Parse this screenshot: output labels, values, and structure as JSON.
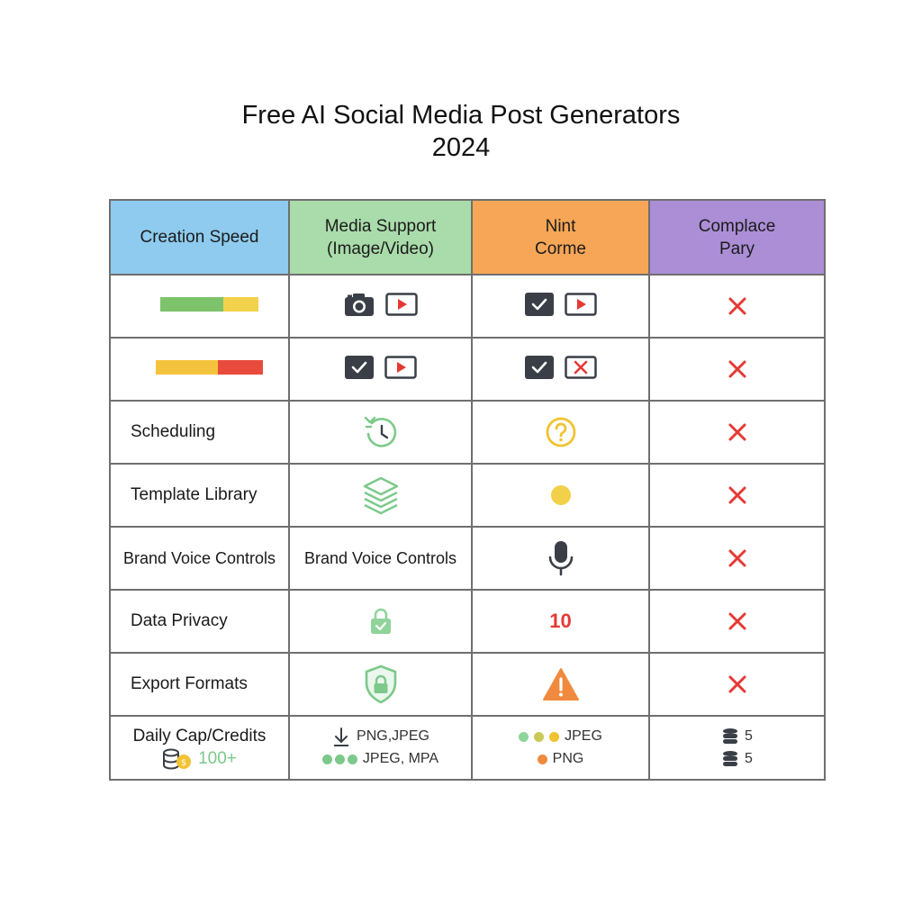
{
  "title": {
    "line1": "Free AI Social Media Post Generators",
    "line2": "2024"
  },
  "headers": [
    "Creation Speed",
    "Media Support\n(Image/Video)",
    "Nint\nCorme",
    "Complace\nPary"
  ],
  "headers_split": [
    [
      "Creation Speed"
    ],
    [
      "Media Support",
      "(Image/Video)"
    ],
    [
      "Nint",
      "Corme"
    ],
    [
      "Complace",
      "Pary"
    ]
  ],
  "colors": {
    "header_blue": "#8ecbee",
    "header_green": "#a9dcaa",
    "header_orange": "#f6a656",
    "header_purple": "#ab8ed6",
    "cross_red": "#e53935",
    "icon_green": "#7cc98a",
    "dark": "#3a3f47"
  },
  "rows": {
    "r1": {
      "speed_bar": [
        {
          "color": "#7dc36b",
          "fraction": 0.64
        },
        {
          "color": "#f2d24b",
          "fraction": 0.36
        }
      ],
      "media_icons": [
        "camera-icon",
        "play-icon"
      ],
      "col3_icons": [
        "checkbox-icon",
        "play-icon"
      ],
      "col4_icon": "cross-icon"
    },
    "r2": {
      "speed_bar": [
        {
          "color": "#f4c33d",
          "fraction": 0.58
        },
        {
          "color": "#e84b3c",
          "fraction": 0.42
        }
      ],
      "media_icons": [
        "checkbox-icon",
        "play-icon"
      ],
      "col3_icons": [
        "checkbox-icon",
        "x-box-icon"
      ],
      "col4_icon": "cross-icon"
    },
    "r3": {
      "label": "Scheduling",
      "media_icon": "clock-icon",
      "col3_icon": "question-icon",
      "col4_icon": "cross-icon"
    },
    "r4": {
      "label": "Template Library",
      "media_icon": "layers-icon",
      "col3_icon": "yellow-dot-icon",
      "col4_icon": "cross-icon"
    },
    "r5": {
      "label": "Brand Voice Controls",
      "media_text": "Brand Voice Controls",
      "col3_icon": "microphone-icon",
      "col4_icon": "cross-icon"
    },
    "r6": {
      "label": "Data Privacy",
      "media_icon": "lock-icon",
      "col3_text": "10",
      "col4_icon": "cross-icon"
    },
    "r7": {
      "label": "Export Formats",
      "media_icon": "shield-lock-icon",
      "col3_icon": "warning-icon",
      "col4_icon": "cross-icon"
    },
    "r8": {
      "label": "Daily Cap/Credits",
      "credits": "100+",
      "media_line1": "PNG,JPEG",
      "media_line2": "JPEG, MPA",
      "col3_line1": "JPEG",
      "col3_line2": "PNG",
      "col4_line1": "5",
      "col4_line2": "5"
    }
  }
}
